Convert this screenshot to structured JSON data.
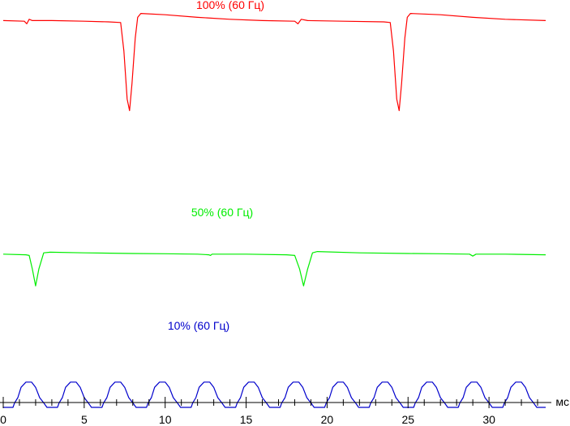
{
  "chart_data": {
    "type": "line",
    "xlabel": "мс",
    "xlim": [
      0,
      33.5
    ],
    "x_ticks": [
      0,
      5,
      10,
      15,
      20,
      25,
      30
    ],
    "grid": false,
    "legend": "none",
    "series": [
      {
        "name": "100% (60 Гц)",
        "color": "#ff0000",
        "points": [
          [
            0,
            0.935
          ],
          [
            1.3,
            0.93
          ],
          [
            1.45,
            0.91
          ],
          [
            1.6,
            0.945
          ],
          [
            1.8,
            0.935
          ],
          [
            3.0,
            0.935
          ],
          [
            5.0,
            0.93
          ],
          [
            6.5,
            0.925
          ],
          [
            7.25,
            0.92
          ],
          [
            7.45,
            0.7
          ],
          [
            7.65,
            0.33
          ],
          [
            7.8,
            0.24
          ],
          [
            7.95,
            0.45
          ],
          [
            8.15,
            0.8
          ],
          [
            8.3,
            0.96
          ],
          [
            8.5,
            0.99
          ],
          [
            10,
            0.98
          ],
          [
            12,
            0.96
          ],
          [
            14,
            0.945
          ],
          [
            16,
            0.935
          ],
          [
            18,
            0.93
          ],
          [
            18.2,
            0.91
          ],
          [
            18.4,
            0.945
          ],
          [
            18.8,
            0.935
          ],
          [
            21,
            0.93
          ],
          [
            23.5,
            0.925
          ],
          [
            23.9,
            0.92
          ],
          [
            24.1,
            0.7
          ],
          [
            24.3,
            0.33
          ],
          [
            24.45,
            0.24
          ],
          [
            24.6,
            0.45
          ],
          [
            24.8,
            0.8
          ],
          [
            24.95,
            0.96
          ],
          [
            25.15,
            0.99
          ],
          [
            27,
            0.98
          ],
          [
            29,
            0.96
          ],
          [
            31,
            0.945
          ],
          [
            33.5,
            0.935
          ]
        ]
      },
      {
        "name": "50% (60 Гц)",
        "color": "#00ee00",
        "points": [
          [
            0,
            0.445
          ],
          [
            1.4,
            0.44
          ],
          [
            1.6,
            0.435
          ],
          [
            1.8,
            0.33
          ],
          [
            2.0,
            0.2
          ],
          [
            2.2,
            0.33
          ],
          [
            2.5,
            0.455
          ],
          [
            2.9,
            0.46
          ],
          [
            5,
            0.455
          ],
          [
            8,
            0.45
          ],
          [
            10,
            0.448
          ],
          [
            12,
            0.445
          ],
          [
            12.7,
            0.44
          ],
          [
            12.8,
            0.435
          ],
          [
            12.9,
            0.445
          ],
          [
            15,
            0.445
          ],
          [
            17.5,
            0.44
          ],
          [
            18.0,
            0.435
          ],
          [
            18.3,
            0.33
          ],
          [
            18.55,
            0.2
          ],
          [
            18.8,
            0.33
          ],
          [
            19.1,
            0.455
          ],
          [
            19.4,
            0.465
          ],
          [
            22,
            0.455
          ],
          [
            25,
            0.45
          ],
          [
            27,
            0.448
          ],
          [
            28.8,
            0.445
          ],
          [
            29.0,
            0.43
          ],
          [
            29.2,
            0.445
          ],
          [
            31,
            0.445
          ],
          [
            33.5,
            0.44
          ]
        ]
      },
      {
        "name": "10% (60 Гц)",
        "color": "#0000cc",
        "points": [
          [
            0,
            0.025
          ],
          [
            0.6,
            0.025
          ],
          [
            0.7,
            0.06
          ],
          [
            0.9,
            0.1
          ],
          [
            1.1,
            0.18
          ],
          [
            1.4,
            0.22
          ],
          [
            1.75,
            0.22
          ],
          [
            2.0,
            0.18
          ],
          [
            2.25,
            0.1
          ],
          [
            2.5,
            0.06
          ],
          [
            2.7,
            0.025
          ],
          [
            3.35,
            0.025
          ],
          [
            3.45,
            0.06
          ],
          [
            3.65,
            0.1
          ],
          [
            3.85,
            0.18
          ],
          [
            4.15,
            0.22
          ],
          [
            4.5,
            0.22
          ],
          [
            4.75,
            0.18
          ],
          [
            5.0,
            0.1
          ],
          [
            5.25,
            0.06
          ],
          [
            5.45,
            0.025
          ],
          [
            6.1,
            0.025
          ],
          [
            6.2,
            0.06
          ],
          [
            6.4,
            0.1
          ],
          [
            6.6,
            0.18
          ],
          [
            6.9,
            0.22
          ],
          [
            7.25,
            0.22
          ],
          [
            7.5,
            0.18
          ],
          [
            7.75,
            0.1
          ],
          [
            8.0,
            0.06
          ],
          [
            8.2,
            0.025
          ],
          [
            8.85,
            0.025
          ],
          [
            8.95,
            0.06
          ],
          [
            9.15,
            0.1
          ],
          [
            9.35,
            0.18
          ],
          [
            9.65,
            0.22
          ],
          [
            10.0,
            0.22
          ],
          [
            10.25,
            0.18
          ],
          [
            10.5,
            0.1
          ],
          [
            10.75,
            0.06
          ],
          [
            10.95,
            0.025
          ],
          [
            11.6,
            0.025
          ],
          [
            11.7,
            0.06
          ],
          [
            11.9,
            0.1
          ],
          [
            12.1,
            0.18
          ],
          [
            12.4,
            0.22
          ],
          [
            12.75,
            0.22
          ],
          [
            13.0,
            0.18
          ],
          [
            13.25,
            0.1
          ],
          [
            13.5,
            0.06
          ],
          [
            13.7,
            0.025
          ],
          [
            14.35,
            0.025
          ],
          [
            14.45,
            0.06
          ],
          [
            14.65,
            0.1
          ],
          [
            14.85,
            0.18
          ],
          [
            15.15,
            0.22
          ],
          [
            15.5,
            0.22
          ],
          [
            15.75,
            0.18
          ],
          [
            16.0,
            0.1
          ],
          [
            16.25,
            0.06
          ],
          [
            16.45,
            0.025
          ],
          [
            17.1,
            0.025
          ],
          [
            17.2,
            0.06
          ],
          [
            17.4,
            0.1
          ],
          [
            17.6,
            0.18
          ],
          [
            17.9,
            0.22
          ],
          [
            18.25,
            0.22
          ],
          [
            18.5,
            0.18
          ],
          [
            18.75,
            0.1
          ],
          [
            19.0,
            0.06
          ],
          [
            19.2,
            0.025
          ],
          [
            19.85,
            0.025
          ],
          [
            19.95,
            0.06
          ],
          [
            20.15,
            0.1
          ],
          [
            20.35,
            0.18
          ],
          [
            20.65,
            0.22
          ],
          [
            21.0,
            0.22
          ],
          [
            21.25,
            0.18
          ],
          [
            21.5,
            0.1
          ],
          [
            21.75,
            0.06
          ],
          [
            21.95,
            0.025
          ],
          [
            22.6,
            0.025
          ],
          [
            22.7,
            0.06
          ],
          [
            22.9,
            0.1
          ],
          [
            23.1,
            0.18
          ],
          [
            23.4,
            0.22
          ],
          [
            23.75,
            0.22
          ],
          [
            24.0,
            0.18
          ],
          [
            24.25,
            0.1
          ],
          [
            24.5,
            0.06
          ],
          [
            24.7,
            0.025
          ],
          [
            25.35,
            0.025
          ],
          [
            25.45,
            0.06
          ],
          [
            25.65,
            0.1
          ],
          [
            25.85,
            0.18
          ],
          [
            26.15,
            0.22
          ],
          [
            26.5,
            0.22
          ],
          [
            26.75,
            0.18
          ],
          [
            27.0,
            0.1
          ],
          [
            27.25,
            0.06
          ],
          [
            27.45,
            0.025
          ],
          [
            28.1,
            0.025
          ],
          [
            28.2,
            0.06
          ],
          [
            28.4,
            0.1
          ],
          [
            28.6,
            0.18
          ],
          [
            28.9,
            0.22
          ],
          [
            29.25,
            0.22
          ],
          [
            29.5,
            0.18
          ],
          [
            29.75,
            0.1
          ],
          [
            30.0,
            0.06
          ],
          [
            30.2,
            0.025
          ],
          [
            30.85,
            0.025
          ],
          [
            30.95,
            0.06
          ],
          [
            31.15,
            0.1
          ],
          [
            31.35,
            0.18
          ],
          [
            31.65,
            0.22
          ],
          [
            32.0,
            0.22
          ],
          [
            32.25,
            0.18
          ],
          [
            32.5,
            0.1
          ],
          [
            32.75,
            0.06
          ],
          [
            32.95,
            0.025
          ],
          [
            33.5,
            0.025
          ]
        ]
      }
    ]
  }
}
